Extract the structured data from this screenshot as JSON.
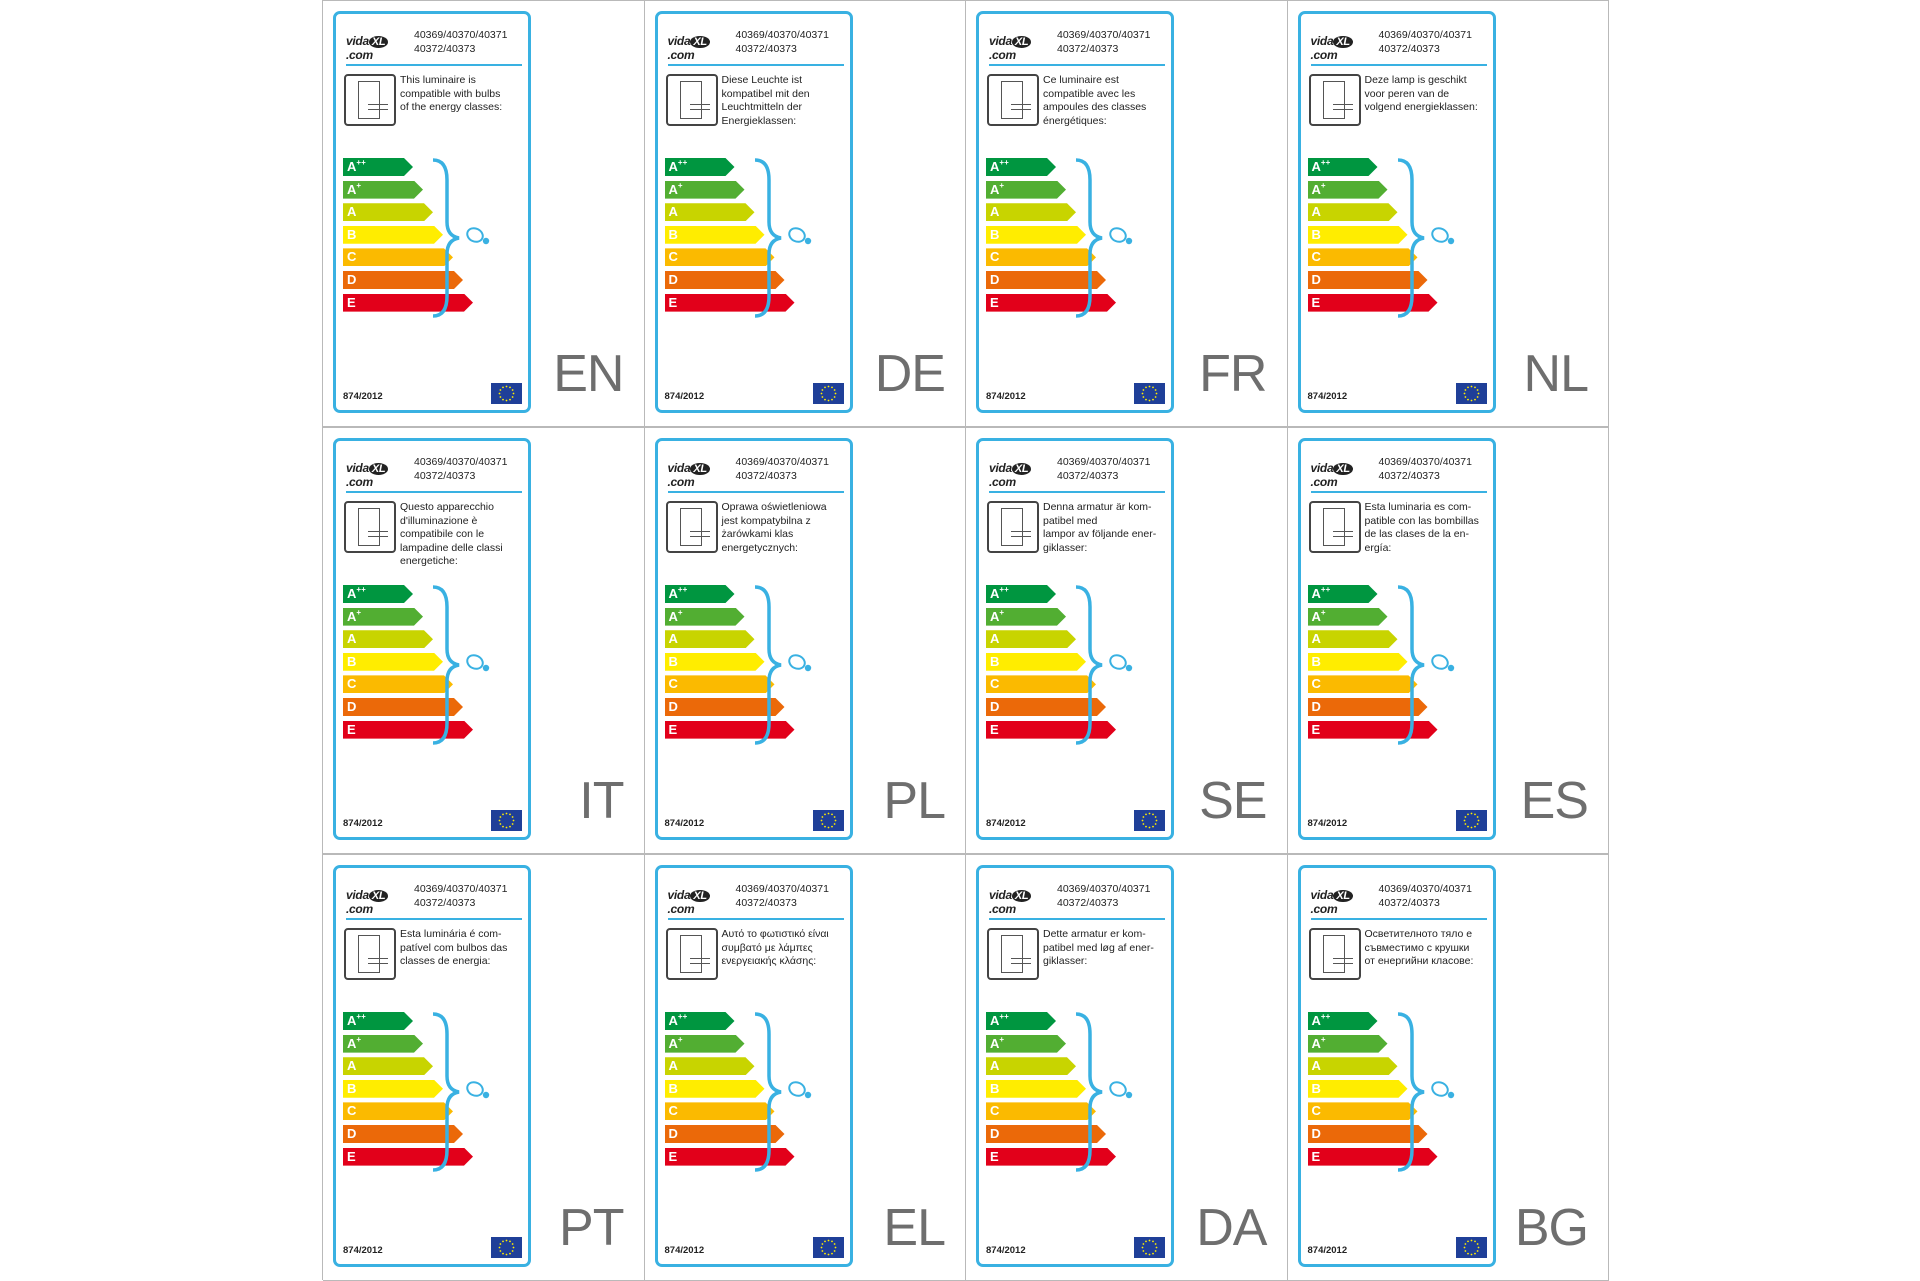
{
  "product_codes_line1": "40369/40370/40371",
  "product_codes_line2": "40372/40373",
  "regulation": "874/2012",
  "logo": {
    "text_left": "vida",
    "text_mark": "XL",
    "text_right": ".com"
  },
  "energy_classes": [
    {
      "letter": "A",
      "sup": "++",
      "color": "#009640"
    },
    {
      "letter": "A",
      "sup": "+",
      "color": "#52ae32"
    },
    {
      "letter": "A",
      "sup": "",
      "color": "#c8d400"
    },
    {
      "letter": "B",
      "sup": "",
      "color": "#ffed00"
    },
    {
      "letter": "C",
      "sup": "",
      "color": "#fbba00"
    },
    {
      "letter": "D",
      "sup": "",
      "color": "#eb6909"
    },
    {
      "letter": "E",
      "sup": "",
      "color": "#e2001a"
    }
  ],
  "colors": {
    "card_border": "#39b1e2",
    "bulb": "#39b1e2",
    "eu_flag": "#1f3f98",
    "lang_text": "#6e6e6e"
  },
  "icons": {
    "luminaire": "luminaire-icon",
    "bulb": "bulb-icon",
    "eu_flag": "eu-flag-icon"
  },
  "labels": [
    {
      "lang": "EN",
      "text": [
        "This luminaire is",
        "compatible with bulbs",
        "of the energy classes:"
      ]
    },
    {
      "lang": "DE",
      "text": [
        "Diese Leuchte ist",
        "kompatibel mit den",
        "Leuchtmitteln der",
        "Energieklassen:"
      ]
    },
    {
      "lang": "FR",
      "text": [
        "Ce luminaire est",
        "compatible avec les",
        "ampoules des classes",
        "énergétiques:"
      ]
    },
    {
      "lang": "NL",
      "text": [
        "Deze lamp is geschikt",
        "voor peren van de",
        "volgend energieklassen:"
      ]
    },
    {
      "lang": "IT",
      "text": [
        "Questo apparecchio",
        "d'illuminazione è",
        "compatibile con le",
        "lampadine delle classi",
        "energetiche:"
      ]
    },
    {
      "lang": "PL",
      "text": [
        "Oprawa oświetleniowa",
        "jest kompatybilna z",
        "żarówkami klas",
        "energetycznych:"
      ]
    },
    {
      "lang": "SE",
      "text": [
        "Denna armatur är kom-",
        "patibel med",
        "lampor av följande ener-",
        "giklasser:"
      ]
    },
    {
      "lang": "ES",
      "text": [
        "Esta luminaria es com-",
        "patible con las bombillas",
        "de las clases de la en-",
        "ergía:"
      ]
    },
    {
      "lang": "PT",
      "text": [
        "Esta luminária é com-",
        "patível com bulbos das",
        "classes de energia:"
      ]
    },
    {
      "lang": "EL",
      "text": [
        "Αυτό το φωτιστικό είναι",
        "συμβατό με λάμπες",
        "ενεργειακής κλάσης:"
      ]
    },
    {
      "lang": "DA",
      "text": [
        "Dette armatur er kom-",
        "patibel med løg af ener-",
        "giklasser:"
      ]
    },
    {
      "lang": "BG",
      "text": [
        "Осветителното тяло е",
        "съвместимо с крушки",
        "от енергийни класове:"
      ]
    }
  ]
}
